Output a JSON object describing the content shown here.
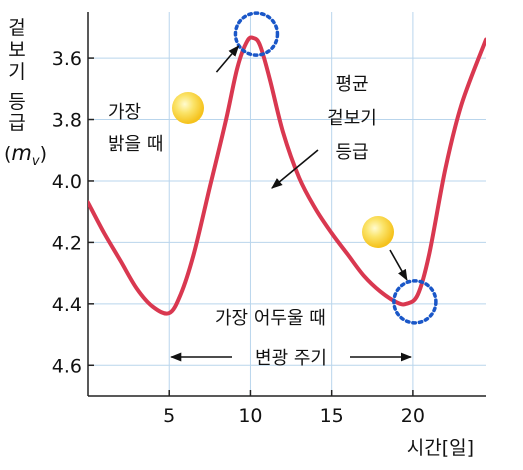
{
  "chart_data": {
    "type": "line",
    "title": "",
    "xlabel": "시간[일]",
    "ylabel": "겉보기 등급",
    "ylabel_symbol": "m",
    "ylabel_subscript": "v",
    "x_ticks": [
      5,
      10,
      15,
      20
    ],
    "y_ticks": [
      3.6,
      3.8,
      4.0,
      4.2,
      4.4,
      4.6
    ],
    "xlim": [
      0,
      24.5
    ],
    "ylim": [
      3.45,
      4.7
    ],
    "y_inverted": true,
    "grid": true,
    "series": [
      {
        "name": "평균 겉보기 등급",
        "color": "#d93850",
        "x": [
          0,
          1,
          2,
          3,
          4,
          5,
          5.7,
          6.5,
          7.5,
          8.5,
          9.2,
          9.8,
          10.2,
          10.6,
          11.2,
          12,
          13,
          14,
          15,
          16,
          17,
          18,
          19,
          19.6,
          20.3,
          21,
          22,
          23,
          24.5
        ],
        "y": [
          4.07,
          4.17,
          4.26,
          4.35,
          4.41,
          4.43,
          4.37,
          4.24,
          4.02,
          3.8,
          3.63,
          3.545,
          3.535,
          3.56,
          3.67,
          3.84,
          3.99,
          4.09,
          4.17,
          4.24,
          4.31,
          4.36,
          4.395,
          4.4,
          4.37,
          4.24,
          3.96,
          3.75,
          3.54
        ]
      }
    ],
    "annotations": {
      "brightest_label": "가장 밝을 때",
      "brightest_line1": "가장",
      "brightest_line2": "밝을 때",
      "brightest_point": {
        "x": 10,
        "y": 3.535
      },
      "darkest_label": "가장 어두울 때",
      "darkest_point": {
        "x": 20,
        "y": 4.4
      },
      "mean_label_line1": "평균",
      "mean_label_line2": "겉보기",
      "mean_label_line3": "등급",
      "period_label": "변광 주기",
      "period_start_x": 5,
      "period_end_x": 20
    }
  },
  "colors": {
    "curve": "#d93850",
    "grid": "#b9d5ec",
    "marker_ring": "#1a57c8",
    "star": "#f5c21c",
    "axis": "#222222",
    "text": "#111111"
  },
  "ylabel_chars": [
    "겉",
    "보",
    "기",
    "등",
    "급"
  ]
}
